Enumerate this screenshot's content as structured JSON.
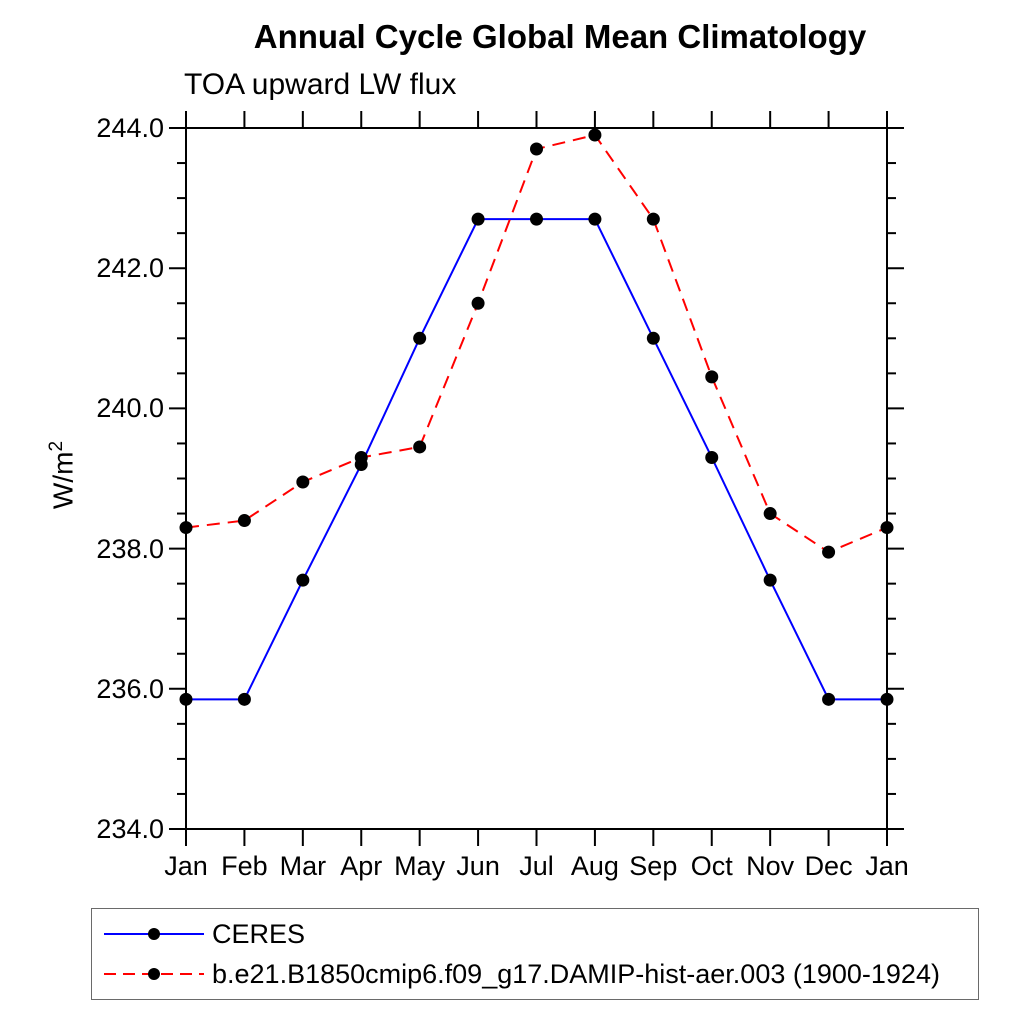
{
  "header": {
    "title": "Annual Cycle Global Mean Climatology",
    "subtitle": "TOA upward LW flux"
  },
  "axis": {
    "ylabel_base": "W/m",
    "ylabel_exp": "2"
  },
  "colors": {
    "axis": "#000000",
    "marker": "#000000",
    "ceres_line": "#0000ff",
    "model_line": "#ff0000"
  },
  "chart_data": {
    "type": "line",
    "title": "Annual Cycle Global Mean Climatology",
    "subtitle": "TOA upward LW flux",
    "xlabel": "",
    "ylabel": "W/m²",
    "x_categories": [
      "Jan",
      "Feb",
      "Mar",
      "Apr",
      "May",
      "Jun",
      "Jul",
      "Aug",
      "Sep",
      "Oct",
      "Nov",
      "Dec",
      "Jan"
    ],
    "ylim": [
      234.0,
      244.0
    ],
    "ytick_major": [
      234.0,
      236.0,
      238.0,
      240.0,
      242.0,
      244.0
    ],
    "ytick_labels": [
      "234.0",
      "236.0",
      "238.0",
      "240.0",
      "242.0",
      "244.0"
    ],
    "ytick_minor_step": 0.5,
    "grid": false,
    "legend_position": "bottom-left",
    "series": [
      {
        "name": "CERES",
        "color": "#0000ff",
        "style": "solid",
        "marker": "circle",
        "marker_color": "#000000",
        "values": [
          235.85,
          235.85,
          237.55,
          239.2,
          241.0,
          242.7,
          242.7,
          242.7,
          241.0,
          239.3,
          237.55,
          235.85,
          235.85
        ]
      },
      {
        "name": "b.e21.B1850cmip6.f09_g17.DAMIP-hist-aer.003 (1900-1924)",
        "color": "#ff0000",
        "style": "dashed",
        "marker": "circle",
        "marker_color": "#000000",
        "values": [
          238.3,
          238.4,
          238.95,
          239.3,
          239.45,
          241.5,
          243.7,
          243.9,
          242.7,
          240.45,
          238.5,
          237.95,
          238.3
        ]
      }
    ]
  }
}
